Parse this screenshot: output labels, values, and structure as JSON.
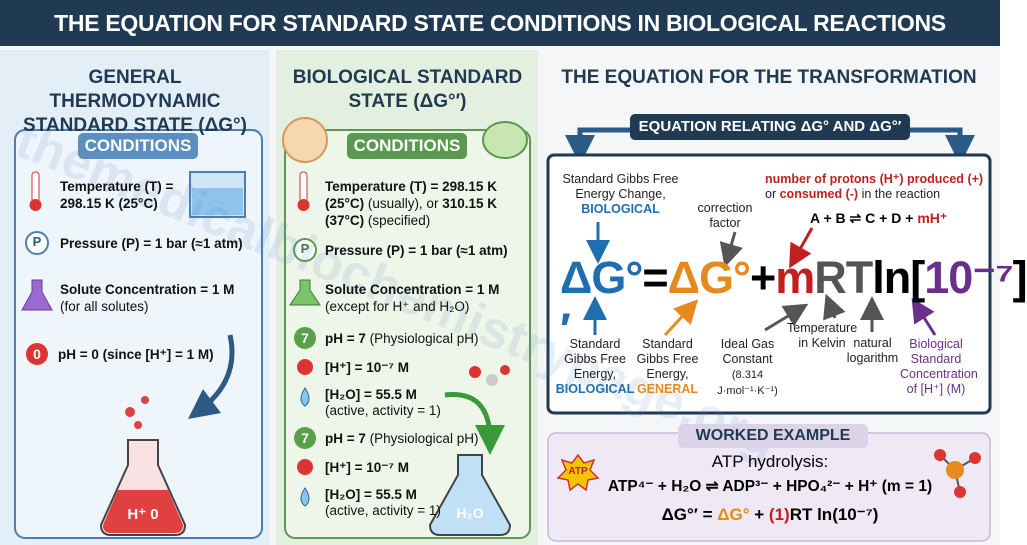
{
  "header": {
    "title": "THE EQUATION FOR STANDARD STATE CONDITIONS IN BIOLOGICAL REACTIONS"
  },
  "watermark": "themedicalbiochemistrypage.org",
  "general": {
    "title": "GENERAL THERMODYNAMIC STANDARD STATE (ΔG°)",
    "tab": "CONDITIONS",
    "temperature": "Temperature (T) = 298.15 K (25°C)",
    "pressure_icon": "P",
    "pressure": "Pressure (P) = 1 bar (≈1 atm)",
    "solute": "Solute Concentration = 1 M",
    "solute_note": "(for all solutes)",
    "ph_icon": "0",
    "ph": "pH = 0 (since [H⁺] = 1 M)",
    "flask_label": "H⁺ 0"
  },
  "biological": {
    "title": "BIOLOGICAL STANDARD STATE (ΔG°′)",
    "tab": "CONDITIONS",
    "temperature": "Temperature (T) = 298.15 K (25°C)",
    "temperature_note": "(usually), or",
    "temperature_alt": "310.15 K (37°C)",
    "temperature_alt_note": "(specified)",
    "pressure_icon": "P",
    "pressure": "Pressure (P) = 1 bar (≈1 atm)",
    "solute": "Solute Concentration = 1 M",
    "solute_note": "(except for H⁺ and H₂O)",
    "items": [
      {
        "icon": "7",
        "label": "pH = 7",
        "note": "(Physiological pH)"
      },
      {
        "label": "[H⁺] = 10⁻⁷ M"
      },
      {
        "label": "[H₂O] = 55.5 M",
        "note": "(active, activity = 1)"
      },
      {
        "icon": "7",
        "label": "pH = 7",
        "note": "(Physiological pH)"
      },
      {
        "label": "[H⁺] = 10⁻⁷ M"
      },
      {
        "label": "[H₂O] = 55.5 M",
        "note": "(active, activity = 1)"
      }
    ],
    "flask_label": "H₂O"
  },
  "transformation": {
    "title": "THE EQUATION FOR THE TRANSFORMATION",
    "banner": "EQUATION RELATING ΔG° AND ΔG°′",
    "equation": {
      "lhs": "ΔG°′",
      "equals": "=",
      "general": "ΔG°",
      "plus": "+",
      "m": "m",
      "rt": "RT",
      "ln": "ln",
      "open": "[",
      "conc": "10⁻⁷",
      "close": "]"
    },
    "top_annotations": {
      "biological": {
        "text": "Standard Gibbs Free Energy Change,",
        "emphasis": "BIOLOGICAL"
      },
      "correction": "correction factor",
      "protons": {
        "part1": "number of protons (H⁺) produced",
        "plus": "(+)",
        "or": "or",
        "minus": "consumed (-)",
        "rest": "in the reaction"
      },
      "reaction": {
        "text": "A + B ⇌ C + D +",
        "m": "mH⁺"
      }
    },
    "bottom_annotations": [
      {
        "text": "Standard Gibbs Free Energy,",
        "emphasis": "BIOLOGICAL"
      },
      {
        "text": "Standard Gibbs Free Energy,",
        "emphasis": "GENERAL"
      },
      {
        "text": "Ideal Gas Constant",
        "note": "(8.314 J·mol⁻¹·K⁻¹)"
      },
      {
        "text": "Temperature in Kelvin"
      },
      {
        "text": "natural logarithm"
      },
      {
        "text": "Biological Standard Concentration of [H⁺] (M)"
      }
    ],
    "worked_example": {
      "tab": "WORKED EXAMPLE",
      "icon": "ATP",
      "subtitle": "ATP hydrolysis:",
      "reaction": "ATP⁴⁻ + H₂O ⇌ ADP³⁻ + HPO₄²⁻ + H⁺ (m = 1)",
      "equation": {
        "lhs": "ΔG°′ =",
        "general": "ΔG°",
        "plus": "+",
        "m": "(1)",
        "rest": "RT ln(10⁻⁷)"
      }
    }
  }
}
